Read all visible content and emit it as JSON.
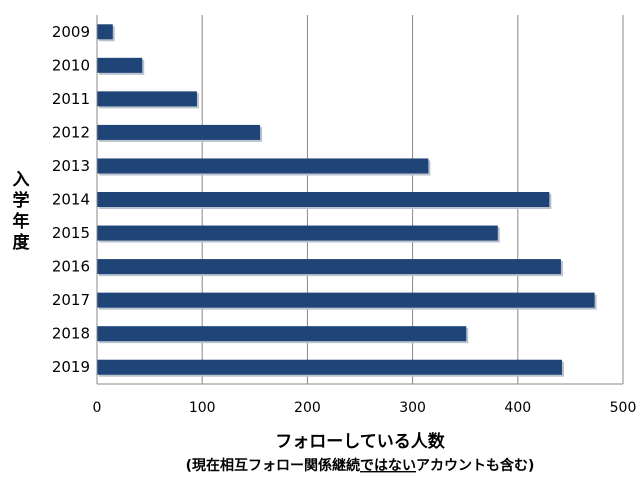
{
  "chart_data": {
    "type": "bar",
    "orientation": "horizontal",
    "categories": [
      "2009",
      "2010",
      "2011",
      "2012",
      "2013",
      "2014",
      "2015",
      "2016",
      "2017",
      "2018",
      "2019"
    ],
    "values": [
      15,
      43,
      95,
      155,
      315,
      430,
      381,
      441,
      473,
      351,
      442
    ],
    "xlabel": "フォローしている人数",
    "xlabel_note_parts": [
      "(現在相互フォロー関係継続",
      "ではない",
      "アカウントも含む)"
    ],
    "ylabel_chars": [
      "入",
      "学",
      "年",
      "度"
    ],
    "xlim": [
      0,
      500
    ],
    "xticks": [
      0,
      100,
      200,
      300,
      400,
      500
    ],
    "grid": "vertical",
    "bar_color": "#1f4477"
  }
}
